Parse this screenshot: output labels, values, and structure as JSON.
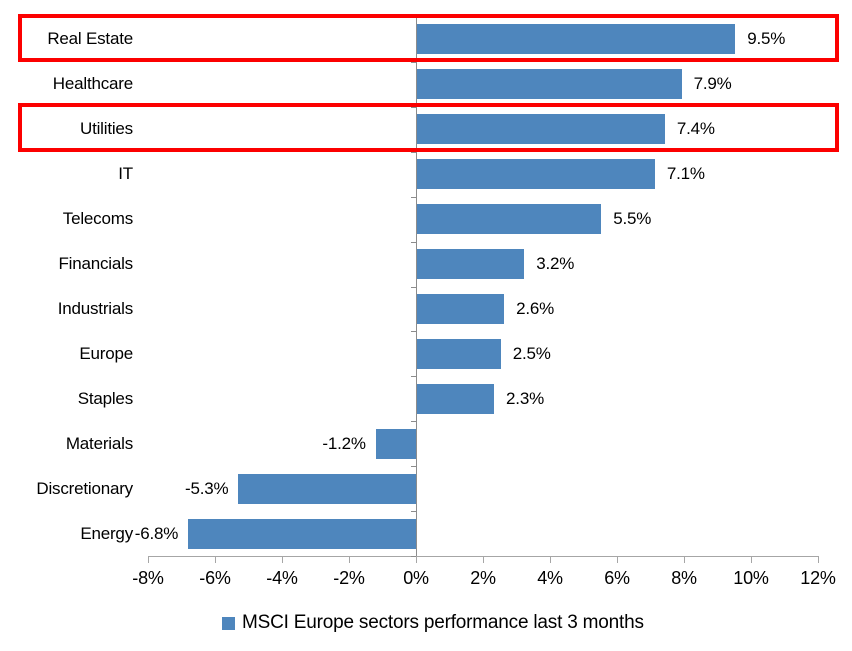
{
  "chart_data": {
    "type": "bar",
    "orientation": "horizontal",
    "title": "",
    "categories": [
      "Real Estate",
      "Healthcare",
      "Utilities",
      "IT",
      "Telecoms",
      "Financials",
      "Industrials",
      "Europe",
      "Staples",
      "Materials",
      "Discretionary",
      "Energy"
    ],
    "values": [
      9.5,
      7.9,
      7.4,
      7.1,
      5.5,
      3.2,
      2.6,
      2.5,
      2.3,
      -1.2,
      -5.3,
      -6.8
    ],
    "value_labels": [
      "9.5%",
      "7.9%",
      "7.4%",
      "7.1%",
      "5.5%",
      "3.2%",
      "2.6%",
      "2.5%",
      "2.3%",
      "-1.2%",
      "-5.3%",
      "-6.8%"
    ],
    "highlighted_categories": [
      "Real Estate",
      "Utilities"
    ],
    "xlim": [
      -8,
      12
    ],
    "x_ticks": [
      "-8%",
      "-6%",
      "-4%",
      "-2%",
      "0%",
      "2%",
      "4%",
      "6%",
      "8%",
      "10%",
      "12%"
    ],
    "x_tick_values": [
      -8,
      -6,
      -4,
      -2,
      0,
      2,
      4,
      6,
      8,
      10,
      12
    ],
    "grid": "off",
    "legend": "MSCI Europe sectors performance last 3 months",
    "legend_position": "bottom",
    "colors": {
      "bar": "#4E86BD",
      "highlight_border": "#FC0000",
      "axis": "#A6A6A6",
      "zero_axis": "#8C8C8C",
      "text": "#000000"
    }
  }
}
